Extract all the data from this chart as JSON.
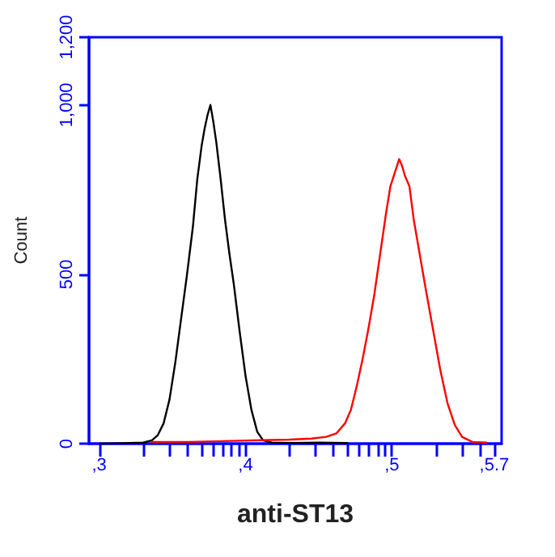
{
  "chart_data": {
    "type": "line",
    "xlabel": "anti-ST13",
    "ylabel": "Count",
    "xlim": [
      2.93,
      5.75
    ],
    "ylim": [
      0,
      1200
    ],
    "xticks": [
      {
        "value": 3,
        "label": ",3"
      },
      {
        "value": 3.301,
        "label": null
      },
      {
        "value": 3.477,
        "label": null
      },
      {
        "value": 3.602,
        "label": null
      },
      {
        "value": 3.699,
        "label": null
      },
      {
        "value": 3.778,
        "label": null
      },
      {
        "value": 3.845,
        "label": null
      },
      {
        "value": 3.903,
        "label": null
      },
      {
        "value": 3.954,
        "label": null
      },
      {
        "value": 4,
        "label": ",4"
      },
      {
        "value": 4.301,
        "label": null
      },
      {
        "value": 4.477,
        "label": null
      },
      {
        "value": 4.602,
        "label": null
      },
      {
        "value": 4.699,
        "label": null
      },
      {
        "value": 4.778,
        "label": null
      },
      {
        "value": 4.845,
        "label": null
      },
      {
        "value": 4.903,
        "label": null
      },
      {
        "value": 4.954,
        "label": null
      },
      {
        "value": 5,
        "label": ",5"
      },
      {
        "value": 5.301,
        "label": null
      },
      {
        "value": 5.477,
        "label": null
      },
      {
        "value": 5.602,
        "label": null
      },
      {
        "value": 5.7,
        "label": ",5.7"
      }
    ],
    "yticks": [
      {
        "value": 0,
        "label": "0"
      },
      {
        "value": 500,
        "label": "500"
      },
      {
        "value": 1000,
        "label": "1,000"
      },
      {
        "value": 1200,
        "label": "1,200"
      }
    ],
    "marker": "none",
    "line_style": "solid",
    "series": [
      {
        "color": "#000000",
        "x": [
          3.0,
          3.1,
          3.2,
          3.3,
          3.36,
          3.4,
          3.44,
          3.48,
          3.52,
          3.56,
          3.6,
          3.64,
          3.67,
          3.7,
          3.72,
          3.74,
          3.76,
          3.78,
          3.8,
          3.83,
          3.86,
          3.89,
          3.92,
          3.96,
          4.0,
          4.04,
          4.08,
          4.12,
          4.18,
          4.3,
          4.5,
          4.7
        ],
        "values": [
          0,
          1,
          2,
          3,
          10,
          25,
          60,
          130,
          240,
          370,
          500,
          640,
          780,
          880,
          930,
          970,
          1000,
          950,
          890,
          780,
          660,
          560,
          470,
          330,
          200,
          100,
          35,
          10,
          3,
          2,
          3,
          2
        ]
      },
      {
        "color": "#ff0000",
        "x": [
          3.35,
          3.6,
          3.9,
          4.1,
          4.3,
          4.45,
          4.55,
          4.62,
          4.68,
          4.72,
          4.76,
          4.8,
          4.84,
          4.88,
          4.92,
          4.96,
          4.99,
          5.02,
          5.05,
          5.07,
          5.09,
          5.12,
          5.15,
          5.19,
          5.23,
          5.28,
          5.33,
          5.38,
          5.43,
          5.48,
          5.55,
          5.65
        ],
        "values": [
          5,
          5,
          8,
          10,
          12,
          15,
          20,
          30,
          60,
          100,
          170,
          250,
          340,
          440,
          560,
          680,
          760,
          800,
          840,
          820,
          790,
          760,
          660,
          560,
          460,
          340,
          220,
          120,
          55,
          20,
          5,
          3
        ]
      }
    ]
  }
}
